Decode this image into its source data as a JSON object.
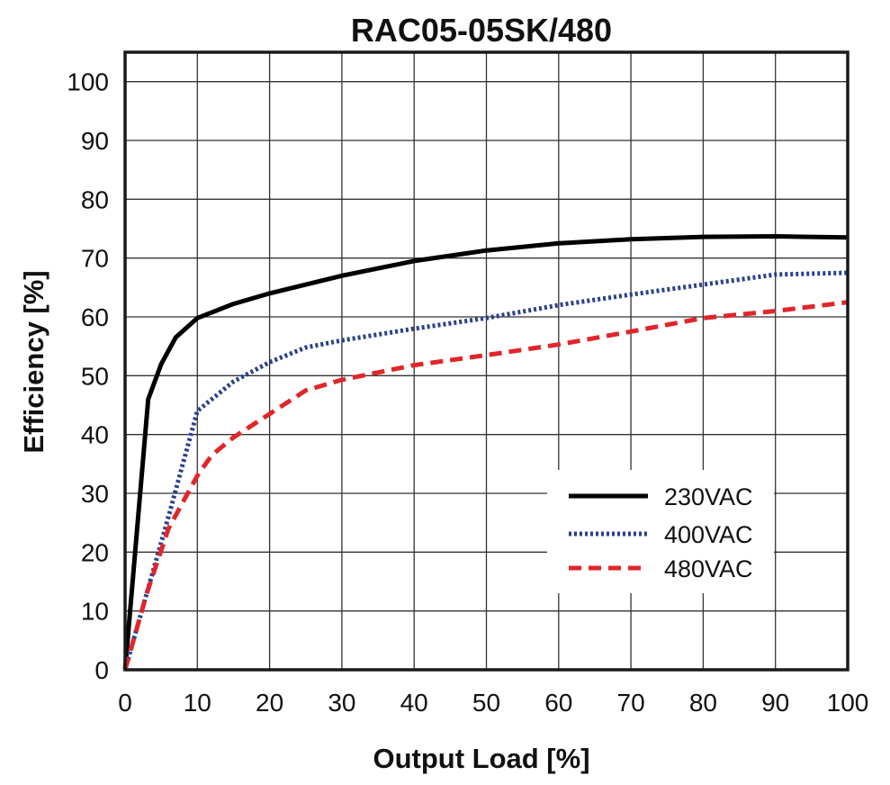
{
  "chart_data": {
    "type": "line",
    "title": "RAC05-05SK/480",
    "xlabel": "Output Load [%]",
    "ylabel": "Efficiency [%]",
    "xlim": [
      0,
      100
    ],
    "ylim": [
      0,
      105
    ],
    "x_ticks": [
      0,
      10,
      20,
      30,
      40,
      50,
      60,
      70,
      80,
      90,
      100
    ],
    "y_ticks": [
      0,
      10,
      20,
      30,
      40,
      50,
      60,
      70,
      80,
      90,
      100
    ],
    "grid": true,
    "legend_position": "bottom-right",
    "series": [
      {
        "name": "230VAC",
        "color": "#000000",
        "style": "solid",
        "x": [
          0,
          3.2,
          5,
          7,
          10,
          15,
          20,
          30,
          40,
          50,
          60,
          70,
          80,
          90,
          100
        ],
        "y": [
          0,
          46,
          52,
          56.5,
          59.8,
          62.2,
          64,
          67,
          69.5,
          71.3,
          72.5,
          73.2,
          73.6,
          73.7,
          73.5
        ]
      },
      {
        "name": "400VAC",
        "color": "#2b3f8c",
        "style": "dotted",
        "x": [
          0,
          3,
          6,
          8,
          10,
          15,
          20,
          25,
          30,
          40,
          50,
          60,
          70,
          80,
          90,
          100
        ],
        "y": [
          0,
          13,
          26,
          35,
          44,
          49,
          52.3,
          54.8,
          56,
          58,
          59.8,
          62,
          63.8,
          65.5,
          67.2,
          67.5
        ]
      },
      {
        "name": "480VAC",
        "color": "#e0262b",
        "style": "dashed",
        "x": [
          0,
          3,
          6,
          10,
          12,
          15,
          20,
          25,
          30,
          40,
          50,
          60,
          70,
          80,
          90,
          100
        ],
        "y": [
          0,
          13,
          24,
          33,
          36.5,
          39.5,
          43.5,
          47.5,
          49.3,
          51.8,
          53.5,
          55.3,
          57.5,
          59.8,
          61,
          62.5
        ]
      }
    ]
  }
}
